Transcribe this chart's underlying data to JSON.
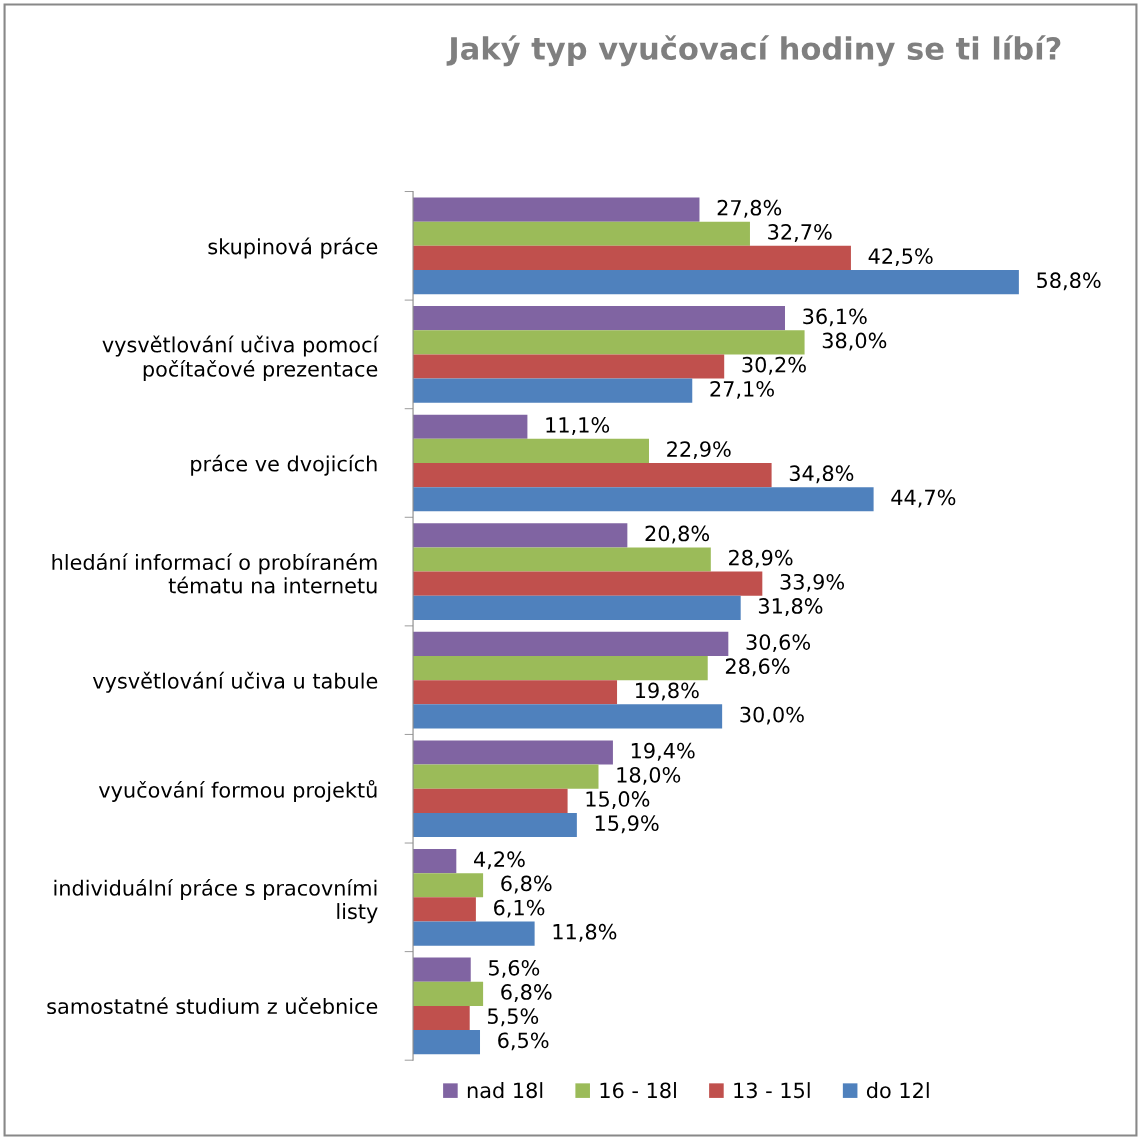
{
  "chart_data": {
    "type": "bar",
    "orientation": "horizontal",
    "title": "Jaký typ vyučovací hodiny se ti líbí?",
    "categories": [
      "skupinová práce",
      "vysvětlování učiva pomocí\npočítačové prezentace",
      "práce ve dvojicích",
      "hledání informací o probíraném\ntématu na internetu",
      "vysvětlování učiva u tabule",
      "vyučování formou projektů",
      "individuální práce s pracovními\nlisty",
      "samostatné studium z učebnice"
    ],
    "series": [
      {
        "name": "nad 18l",
        "color": "#8064a2",
        "values": [
          27.8,
          36.1,
          11.1,
          20.8,
          30.6,
          19.4,
          4.2,
          5.6
        ],
        "value_labels": [
          "27,8%",
          "36,1%",
          "11,1%",
          "20,8%",
          "30,6%",
          "19,4%",
          "4,2%",
          "5,6%"
        ]
      },
      {
        "name": "16 - 18l",
        "color": "#9bbb59",
        "values": [
          32.7,
          38.0,
          22.9,
          28.9,
          28.6,
          18.0,
          6.8,
          6.8
        ],
        "value_labels": [
          "32,7%",
          "38,0%",
          "22,9%",
          "28,9%",
          "28,6%",
          "18,0%",
          "6,8%",
          "6,8%"
        ]
      },
      {
        "name": "13 - 15l",
        "color": "#c0504d",
        "values": [
          42.5,
          30.2,
          34.8,
          33.9,
          19.8,
          15.0,
          6.1,
          5.5
        ],
        "value_labels": [
          "42,5%",
          "30,2%",
          "34,8%",
          "33,9%",
          "19,8%",
          "15,0%",
          "6,1%",
          "5,5%"
        ]
      },
      {
        "name": "do 12l",
        "color": "#4f81bd",
        "values": [
          58.8,
          27.1,
          44.7,
          31.8,
          30.0,
          15.9,
          11.8,
          6.5
        ],
        "value_labels": [
          "58,8%",
          "27,1%",
          "44,7%",
          "31,8%",
          "30,0%",
          "15,9%",
          "11,8%",
          "6,5%"
        ]
      }
    ],
    "legend": "bottom",
    "grid": false,
    "tick_labels": "y"
  }
}
